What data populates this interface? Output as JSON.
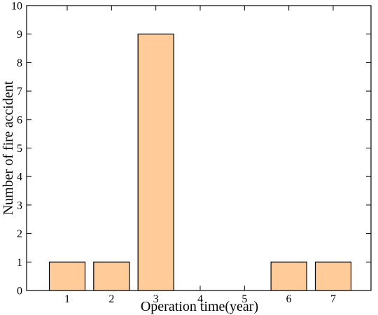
{
  "chart_data": {
    "type": "bar",
    "categories": [
      "1",
      "2",
      "3",
      "4",
      "5",
      "6",
      "7"
    ],
    "values": [
      1,
      1,
      9,
      0,
      0,
      1,
      1
    ],
    "title": "",
    "xlabel": "Operation time(year)",
    "ylabel": "Number of fire accident",
    "ylim": [
      0,
      10
    ],
    "yticks": [
      "0",
      "1",
      "2",
      "3",
      "4",
      "5",
      "6",
      "7",
      "8",
      "9",
      "10"
    ],
    "grid": false,
    "legend": "none",
    "colors": {
      "bar_fill": "#FFCC99",
      "bar_stroke": "#000000"
    }
  }
}
